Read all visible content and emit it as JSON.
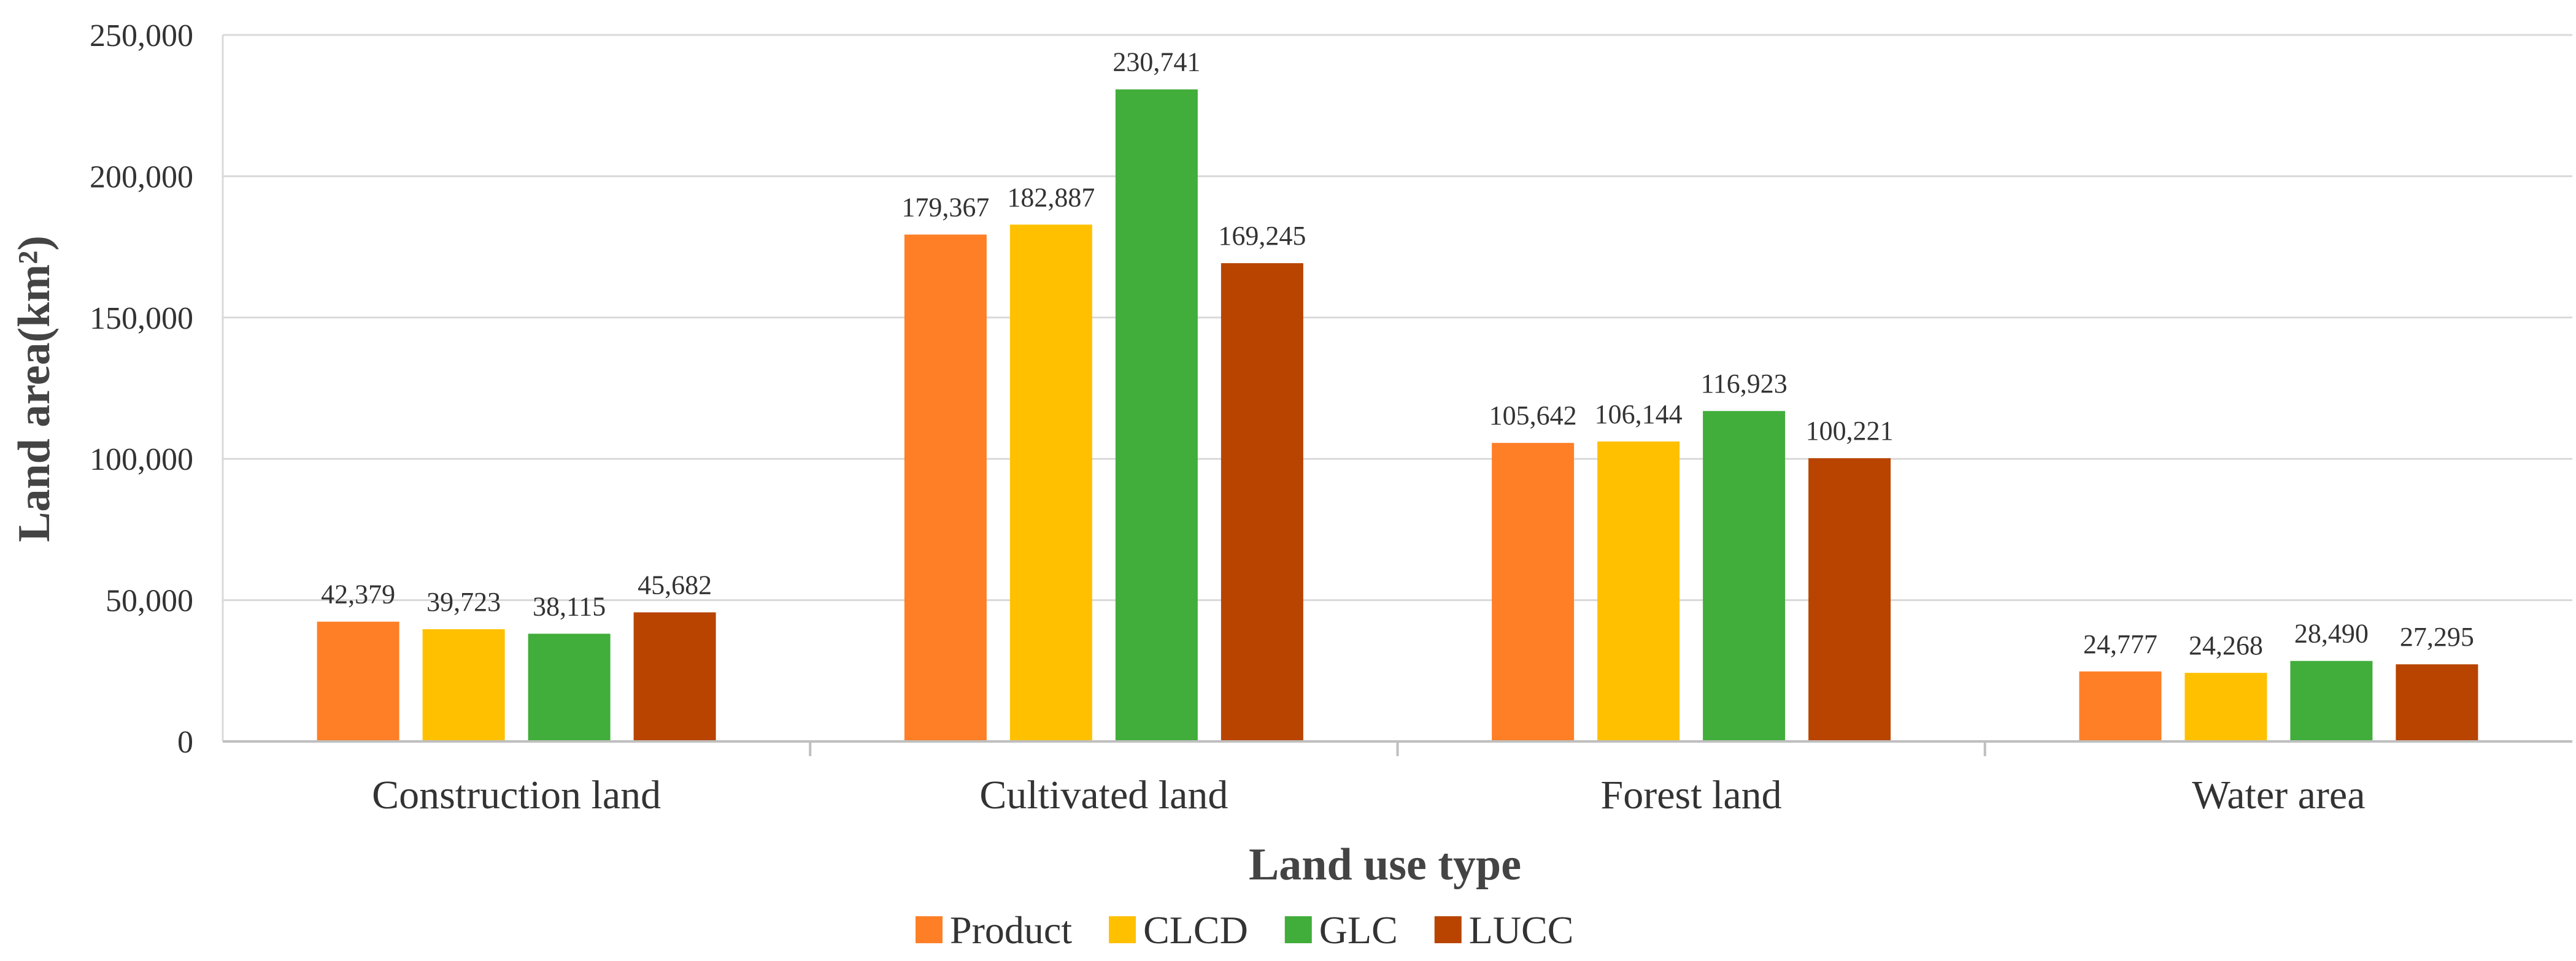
{
  "chart_data": {
    "type": "bar",
    "title": "",
    "xlabel": "Land use type",
    "ylabel": "Land area(km²)",
    "ylim": [
      0,
      250000
    ],
    "yticks": [
      0,
      50000,
      100000,
      150000,
      200000,
      250000
    ],
    "ytick_labels": [
      "0",
      "50,000",
      "100,000",
      "150,000",
      "200,000",
      "250,000"
    ],
    "grid": true,
    "legend_position": "bottom",
    "categories": [
      "Construction land",
      "Cultivated land",
      "Forest land",
      "Water area"
    ],
    "series": [
      {
        "name": "Product",
        "color": "#FF7F27",
        "values": [
          42379,
          179367,
          105642,
          24777
        ],
        "labels": [
          "42,379",
          "179,367",
          "105,642",
          "24,777"
        ]
      },
      {
        "name": "CLCD",
        "color": "#FFC000",
        "values": [
          39723,
          182887,
          106144,
          24268
        ],
        "labels": [
          "39,723",
          "182,887",
          "106,144",
          "24,268"
        ]
      },
      {
        "name": "GLC",
        "color": "#41AD3A",
        "values": [
          38115,
          230741,
          116923,
          28490
        ],
        "labels": [
          "38,115",
          "230,741",
          "116,923",
          "28,490"
        ]
      },
      {
        "name": "LUCC",
        "color": "#B84400",
        "values": [
          45682,
          169245,
          100221,
          27295
        ],
        "labels": [
          "45,682",
          "169,245",
          "100,221",
          "27,295"
        ]
      }
    ]
  }
}
